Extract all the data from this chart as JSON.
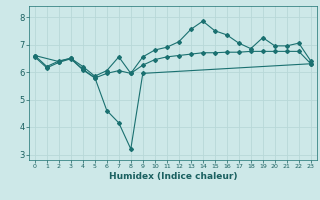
{
  "xlabel": "Humidex (Indice chaleur)",
  "ylabel": "",
  "bg_color": "#cde8e8",
  "grid_color": "#b8d8d8",
  "line_color": "#1a7070",
  "xlim": [
    -0.5,
    23.5
  ],
  "ylim": [
    2.8,
    8.4
  ],
  "xticks": [
    0,
    1,
    2,
    3,
    4,
    5,
    6,
    7,
    8,
    9,
    10,
    11,
    12,
    13,
    14,
    15,
    16,
    17,
    18,
    19,
    20,
    21,
    22,
    23
  ],
  "yticks": [
    3,
    4,
    5,
    6,
    7,
    8
  ],
  "line1_x": [
    0,
    1,
    2,
    3,
    4,
    5,
    6,
    7,
    8,
    9,
    10,
    11,
    12,
    13,
    14,
    15,
    16,
    17,
    18,
    19,
    20,
    21,
    22,
    23
  ],
  "line1_y": [
    6.55,
    6.15,
    6.35,
    6.48,
    6.08,
    5.78,
    5.95,
    6.05,
    5.95,
    6.25,
    6.45,
    6.55,
    6.6,
    6.65,
    6.7,
    6.7,
    6.72,
    6.72,
    6.75,
    6.75,
    6.75,
    6.75,
    6.75,
    6.3
  ],
  "line2_x": [
    0,
    1,
    2,
    3,
    4,
    5,
    6,
    7,
    8,
    9,
    10,
    11,
    12,
    13,
    14,
    15,
    16,
    17,
    18,
    19,
    20,
    21,
    22,
    23
  ],
  "line2_y": [
    6.6,
    6.2,
    6.4,
    6.5,
    6.2,
    5.85,
    6.05,
    6.55,
    5.95,
    6.55,
    6.8,
    6.9,
    7.1,
    7.55,
    7.85,
    7.5,
    7.35,
    7.05,
    6.85,
    7.25,
    6.95,
    6.95,
    7.05,
    6.4
  ],
  "line3_x": [
    0,
    2,
    3,
    4,
    5,
    6,
    7,
    8,
    9,
    23
  ],
  "line3_y": [
    6.6,
    6.38,
    6.5,
    6.1,
    5.8,
    4.6,
    4.15,
    3.2,
    5.95,
    6.3
  ]
}
